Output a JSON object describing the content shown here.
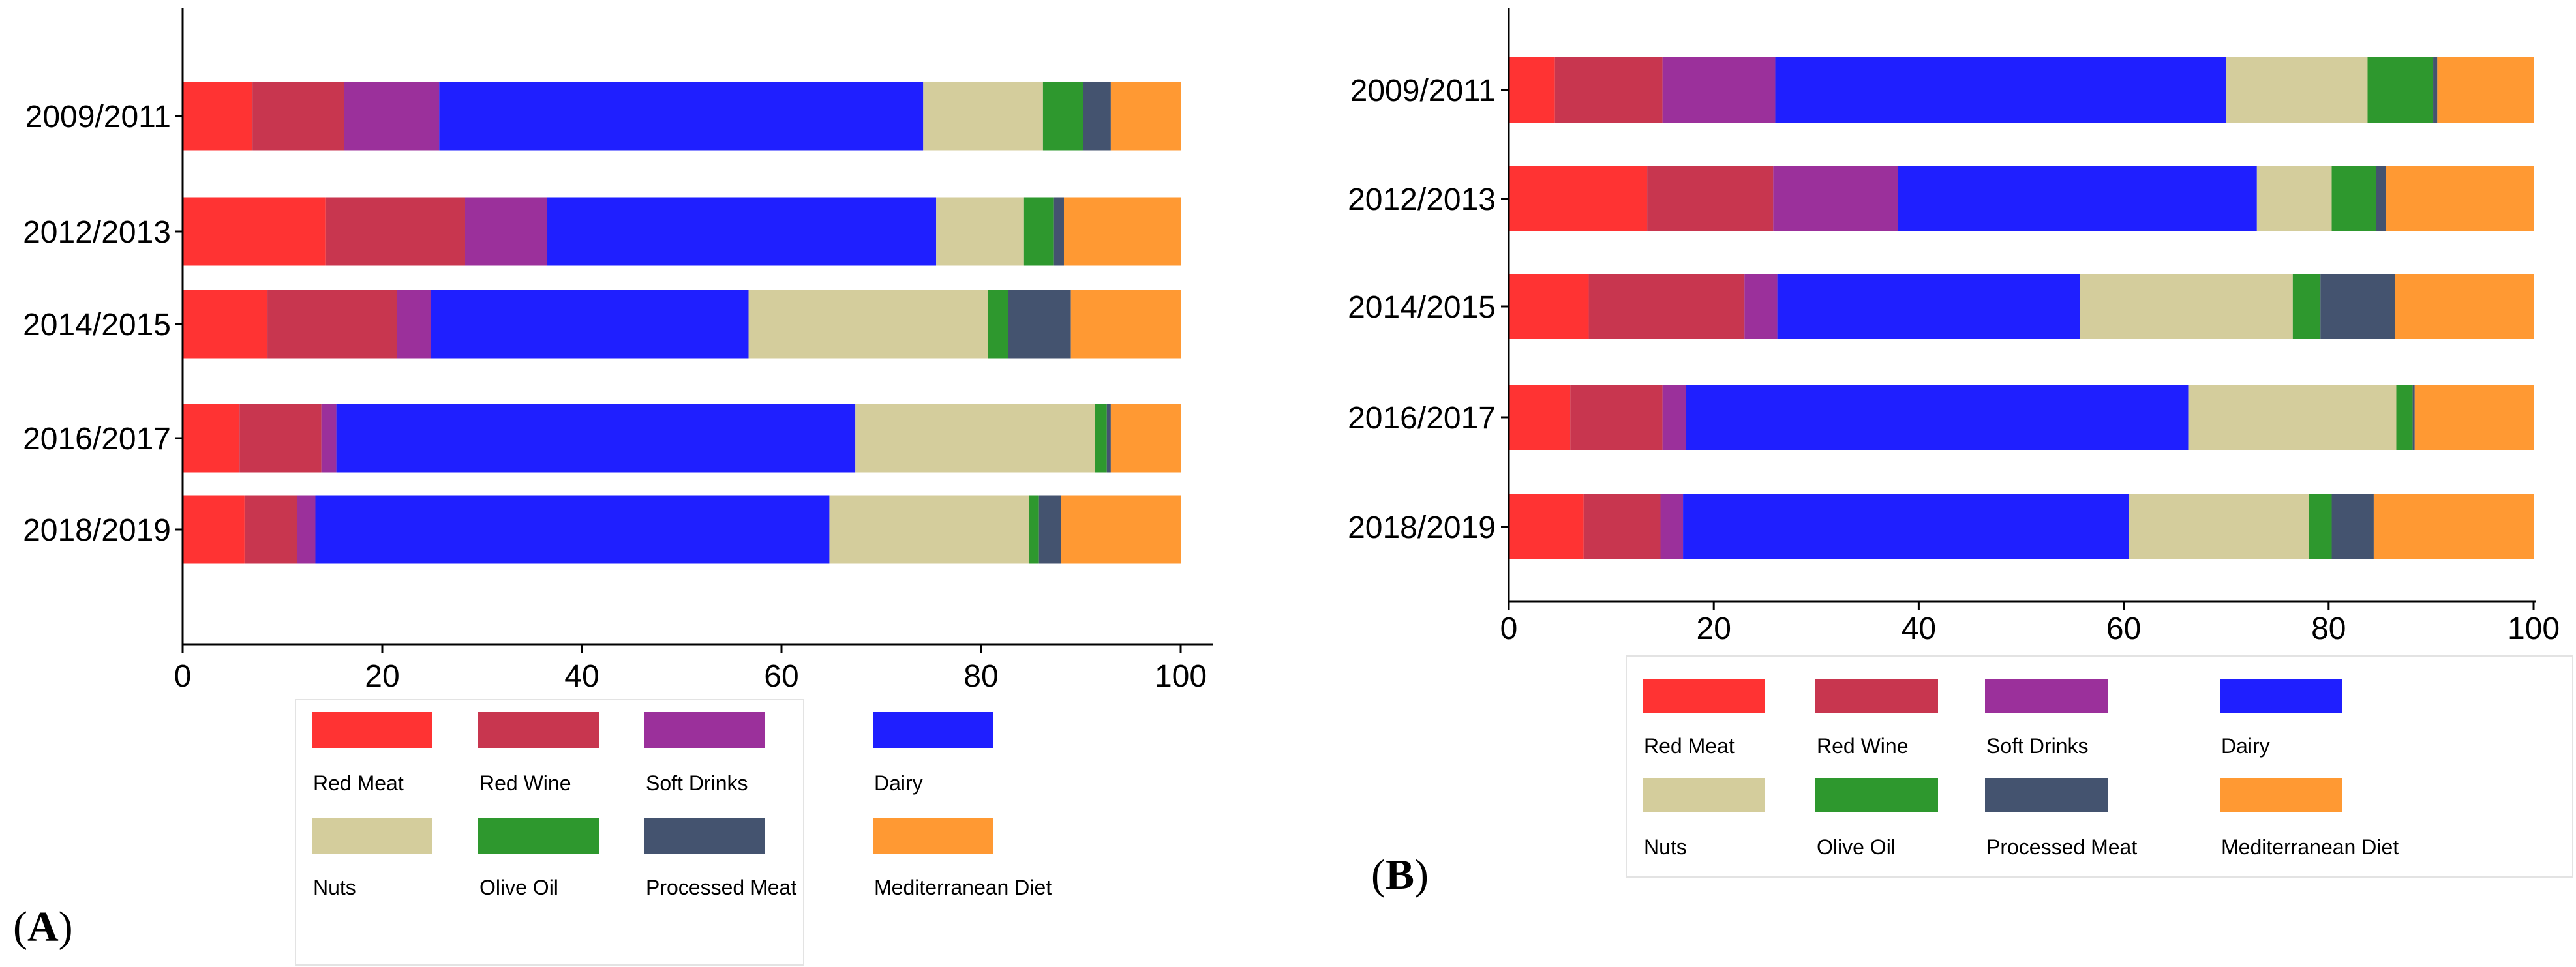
{
  "chart_data": [
    {
      "type": "bar",
      "orientation": "horizontal",
      "stacked": true,
      "panel_label": "A",
      "categories": [
        "2009/2011",
        "2012/2013",
        "2014/2015",
        "2016/2017",
        "2018/2019"
      ],
      "xlim": [
        0,
        100
      ],
      "xticks": [
        "0",
        "20",
        "40",
        "60",
        "80",
        "100"
      ],
      "grid": false,
      "legend_position": "bottom",
      "series": [
        {
          "name": "Red Meat",
          "color": "#ff3333",
          "values": [
            7,
            14.3,
            8.5,
            5.7,
            6.2
          ]
        },
        {
          "name": "Red Wine",
          "color": "#c8364f",
          "values": [
            9.2,
            14,
            13,
            8.2,
            5.3
          ]
        },
        {
          "name": "Soft Drinks",
          "color": "#9b309b",
          "values": [
            9.5,
            8.2,
            3.4,
            1.5,
            1.8
          ]
        },
        {
          "name": "Dairy",
          "color": "#1f1fff",
          "values": [
            48.5,
            39,
            31.8,
            52,
            51.5
          ]
        },
        {
          "name": "Nuts",
          "color": "#d4cd9c",
          "values": [
            12,
            8.8,
            24,
            24,
            20
          ]
        },
        {
          "name": "Olive Oil",
          "color": "#2e982e",
          "values": [
            4,
            3,
            2,
            1.2,
            1
          ]
        },
        {
          "name": "Processed Meat",
          "color": "#44536f",
          "values": [
            2.8,
            1,
            6.3,
            0.4,
            2.2
          ]
        },
        {
          "name": "Mediterranean Diet",
          "color": "#ff9933",
          "values": [
            7,
            11.7,
            11,
            7,
            12
          ]
        }
      ]
    },
    {
      "type": "bar",
      "orientation": "horizontal",
      "stacked": true,
      "panel_label": "B",
      "categories": [
        "2009/2011",
        "2012/2013",
        "2014/2015",
        "2016/2017",
        "2018/2019"
      ],
      "xlim": [
        0,
        100
      ],
      "xticks": [
        "0",
        "20",
        "40",
        "60",
        "80",
        "100"
      ],
      "grid": false,
      "legend_position": "bottom",
      "series": [
        {
          "name": "Red Meat",
          "color": "#ff3333",
          "values": [
            4.5,
            13.5,
            7.8,
            6,
            7.3
          ]
        },
        {
          "name": "Red Wine",
          "color": "#c8364f",
          "values": [
            10.5,
            12.3,
            15.2,
            9,
            7.5
          ]
        },
        {
          "name": "Soft Drinks",
          "color": "#9b309b",
          "values": [
            11,
            12.2,
            3.2,
            2.3,
            2.2
          ]
        },
        {
          "name": "Dairy",
          "color": "#1f1fff",
          "values": [
            44,
            35,
            29.5,
            49,
            43.5
          ]
        },
        {
          "name": "Nuts",
          "color": "#d4cd9c",
          "values": [
            13.8,
            7.3,
            20.8,
            20.3,
            17.6
          ]
        },
        {
          "name": "Olive Oil",
          "color": "#2e982e",
          "values": [
            6.4,
            4.3,
            2.7,
            1.6,
            2.2
          ]
        },
        {
          "name": "Processed Meat",
          "color": "#44536f",
          "values": [
            0.4,
            1,
            7.3,
            0.2,
            4.1
          ]
        },
        {
          "name": "Mediterranean Diet",
          "color": "#ff9933",
          "values": [
            9.4,
            14.4,
            13.5,
            11.6,
            15.6
          ]
        }
      ]
    }
  ]
}
